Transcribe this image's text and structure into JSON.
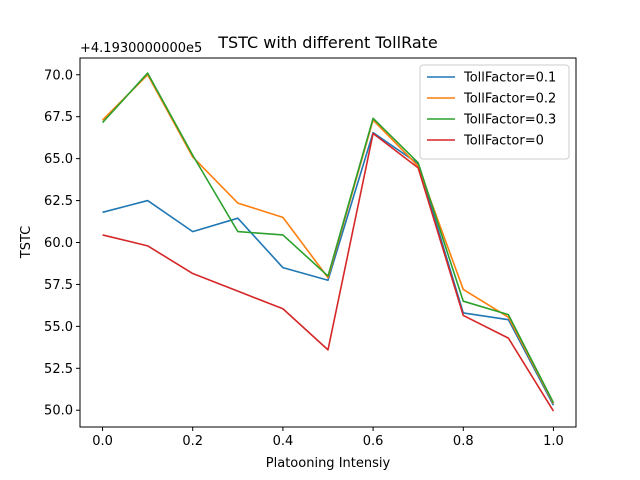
{
  "chart_data": {
    "type": "line",
    "title": "TSTC with different TollRate",
    "xlabel": "Platooning Intensiy",
    "ylabel": "TSTC",
    "y_offset_label": "+4.1930000000e5",
    "xlim": [
      -0.05,
      1.05
    ],
    "ylim": [
      49.0,
      71.0
    ],
    "x_ticks": [
      0.0,
      0.2,
      0.4,
      0.6,
      0.8,
      1.0
    ],
    "x_tick_labels": [
      "0.0",
      "0.2",
      "0.4",
      "0.6",
      "0.8",
      "1.0"
    ],
    "y_ticks": [
      50.0,
      52.5,
      55.0,
      57.5,
      60.0,
      62.5,
      65.0,
      67.5,
      70.0
    ],
    "y_tick_labels": [
      "50.0",
      "52.5",
      "55.0",
      "57.5",
      "60.0",
      "62.5",
      "65.0",
      "67.5",
      "70.0"
    ],
    "grid": false,
    "legend_position": "top-right",
    "x": [
      0.0,
      0.1,
      0.2,
      0.3,
      0.4,
      0.5,
      0.6,
      0.7,
      0.8,
      0.9,
      1.0
    ],
    "series": [
      {
        "name": "TollFactor=0.1",
        "color": "#1f77b4",
        "values": [
          61.8,
          62.5,
          60.65,
          61.45,
          58.5,
          57.75,
          66.55,
          64.7,
          55.8,
          55.4,
          50.3
        ]
      },
      {
        "name": "TollFactor=0.2",
        "color": "#ff7f0e",
        "values": [
          67.3,
          70.0,
          65.1,
          62.35,
          61.5,
          57.9,
          67.3,
          64.55,
          57.2,
          55.55,
          50.4
        ]
      },
      {
        "name": "TollFactor=0.3",
        "color": "#2ca02c",
        "values": [
          67.15,
          70.1,
          65.2,
          60.65,
          60.45,
          58.0,
          67.4,
          64.75,
          56.5,
          55.7,
          50.45
        ]
      },
      {
        "name": "TollFactor=0",
        "color": "#d62728",
        "values": [
          60.45,
          59.8,
          58.15,
          57.1,
          56.05,
          53.6,
          66.5,
          64.45,
          55.65,
          54.3,
          49.95
        ]
      }
    ]
  }
}
